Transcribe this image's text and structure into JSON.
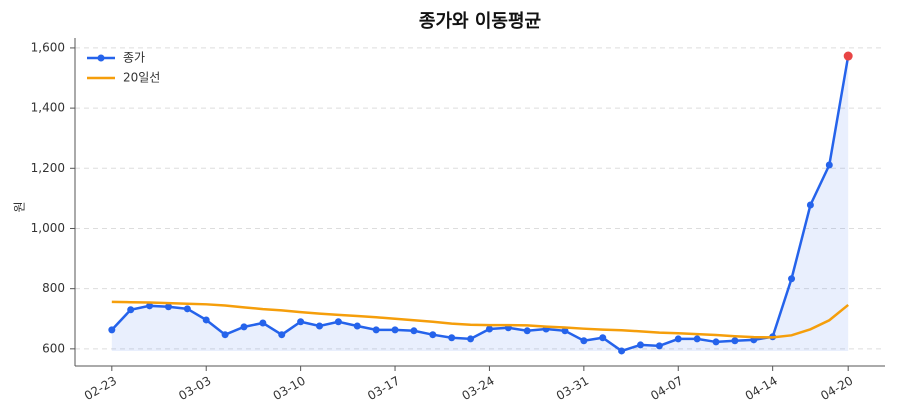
{
  "chart_data": {
    "type": "line",
    "title": "종가와 이동평균",
    "y_label": "원",
    "categories": [
      "02-23",
      null,
      null,
      null,
      null,
      "03-03",
      null,
      null,
      null,
      null,
      "03-10",
      null,
      null,
      null,
      null,
      "03-17",
      null,
      null,
      null,
      null,
      "03-24",
      null,
      null,
      null,
      null,
      "03-31",
      null,
      null,
      null,
      null,
      "04-07",
      null,
      null,
      null,
      null,
      "04-14",
      null,
      null,
      null,
      "04-20"
    ],
    "series": [
      {
        "name": "종가",
        "color": "#2563eb",
        "marker": true,
        "area": true,
        "last_point_color": "#e84545",
        "values": [
          663,
          730,
          743,
          740,
          733,
          696,
          647,
          673,
          686,
          647,
          690,
          676,
          690,
          676,
          663,
          663,
          660,
          647,
          637,
          633,
          666,
          670,
          660,
          666,
          660,
          627,
          637,
          593,
          613,
          610,
          633,
          633,
          623,
          627,
          630,
          640,
          833,
          1078,
          1211,
          1573
        ]
      },
      {
        "name": "20일선",
        "color": "#f59e0b",
        "marker": false,
        "area": false,
        "values": [
          756,
          755,
          754,
          752,
          750,
          748,
          744,
          738,
          732,
          728,
          722,
          717,
          713,
          709,
          705,
          700,
          695,
          690,
          684,
          680,
          679,
          679,
          678,
          674,
          671,
          667,
          664,
          662,
          658,
          654,
          652,
          649,
          646,
          642,
          639,
          638,
          645,
          665,
          695,
          746
        ]
      }
    ],
    "ylim": [
      543,
      1633
    ],
    "yticks": [
      600,
      800,
      {
        "value": 1000,
        "label": "1,000"
      },
      {
        "value": 1200,
        "label": "1,200"
      },
      {
        "value": 1400,
        "label": "1,400"
      },
      {
        "value": 1600,
        "label": "1,600"
      }
    ],
    "grid": true,
    "legend": "upper-left"
  }
}
